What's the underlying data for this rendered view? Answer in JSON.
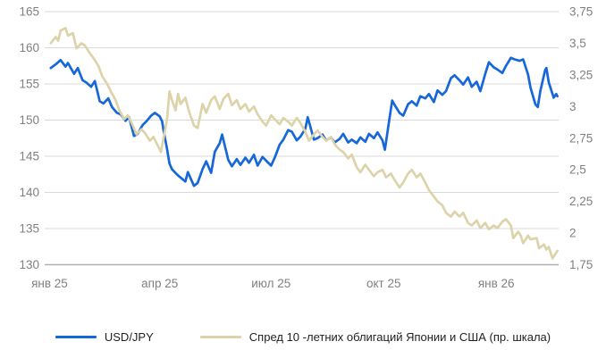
{
  "chart_data": {
    "type": "line",
    "title": "",
    "grid": true,
    "legend_position": "bottom-center",
    "background": "#ffffff",
    "gridline_color": "#d9d9d9",
    "baseline_color": "#b0b0b0",
    "axis_text_color": "#808080",
    "legend_text_color": "#1f1f1f",
    "left_axis": {
      "min": 130,
      "max": 165,
      "ticks": [
        165,
        160,
        155,
        150,
        145,
        140,
        135,
        130
      ]
    },
    "right_axis": {
      "min": 1.75,
      "max": 3.75,
      "ticks": [
        "3,75",
        "3,5",
        "3,25",
        "3",
        "2,75",
        "2,5",
        "2,25",
        "2",
        "1,75"
      ]
    },
    "x_axis": {
      "start_date": "2024-12-28",
      "end_date": "2026-02-21",
      "ticks": [
        {
          "label": "янв 25",
          "date": "2025-01-01"
        },
        {
          "label": "апр 25",
          "date": "2025-04-01"
        },
        {
          "label": "июл 25",
          "date": "2025-07-01"
        },
        {
          "label": "окт 25",
          "date": "2025-10-01"
        },
        {
          "label": "янв 26",
          "date": "2026-01-01"
        }
      ]
    },
    "series": [
      {
        "name": "USD/JPY",
        "color": "#1668d8",
        "axis": "left",
        "points": [
          [
            "2025-01-02",
            157.2
          ],
          [
            "2025-01-06",
            157.7
          ],
          [
            "2025-01-10",
            158.3
          ],
          [
            "2025-01-14",
            157.4
          ],
          [
            "2025-01-16",
            157.9
          ],
          [
            "2025-01-21",
            156.4
          ],
          [
            "2025-01-24",
            157.2
          ],
          [
            "2025-01-28",
            155.5
          ],
          [
            "2025-01-31",
            155.2
          ],
          [
            "2025-02-04",
            154.6
          ],
          [
            "2025-02-07",
            155.4
          ],
          [
            "2025-02-11",
            152.6
          ],
          [
            "2025-02-14",
            152.3
          ],
          [
            "2025-02-18",
            153.0
          ],
          [
            "2025-02-21",
            151.8
          ],
          [
            "2025-02-25",
            151.0
          ],
          [
            "2025-02-28",
            150.8
          ],
          [
            "2025-03-04",
            149.9
          ],
          [
            "2025-03-07",
            150.4
          ],
          [
            "2025-03-11",
            147.8
          ],
          [
            "2025-03-14",
            148.1
          ],
          [
            "2025-03-18",
            149.3
          ],
          [
            "2025-03-21",
            149.8
          ],
          [
            "2025-03-25",
            150.6
          ],
          [
            "2025-03-28",
            151.0
          ],
          [
            "2025-04-01",
            150.5
          ],
          [
            "2025-04-03",
            149.8
          ],
          [
            "2025-04-04",
            148.7
          ],
          [
            "2025-04-07",
            146.0
          ],
          [
            "2025-04-09",
            144.0
          ],
          [
            "2025-04-11",
            143.2
          ],
          [
            "2025-04-15",
            142.5
          ],
          [
            "2025-04-17",
            142.2
          ],
          [
            "2025-04-22",
            141.5
          ],
          [
            "2025-04-24",
            142.8
          ],
          [
            "2025-04-29",
            140.9
          ],
          [
            "2025-05-02",
            141.3
          ],
          [
            "2025-05-06",
            143.2
          ],
          [
            "2025-05-09",
            144.3
          ],
          [
            "2025-05-13",
            142.7
          ],
          [
            "2025-05-16",
            145.6
          ],
          [
            "2025-05-20",
            146.8
          ],
          [
            "2025-05-22",
            148.0
          ],
          [
            "2025-05-27",
            144.5
          ],
          [
            "2025-05-30",
            143.6
          ],
          [
            "2025-06-03",
            144.6
          ],
          [
            "2025-06-06",
            143.8
          ],
          [
            "2025-06-10",
            144.8
          ],
          [
            "2025-06-13",
            144.1
          ],
          [
            "2025-06-17",
            145.2
          ],
          [
            "2025-06-20",
            143.7
          ],
          [
            "2025-06-24",
            144.9
          ],
          [
            "2025-06-27",
            144.4
          ],
          [
            "2025-07-01",
            143.7
          ],
          [
            "2025-07-04",
            144.8
          ],
          [
            "2025-07-08",
            146.6
          ],
          [
            "2025-07-11",
            147.3
          ],
          [
            "2025-07-15",
            148.6
          ],
          [
            "2025-07-18",
            148.4
          ],
          [
            "2025-07-22",
            147.2
          ],
          [
            "2025-07-25",
            147.7
          ],
          [
            "2025-07-29",
            148.8
          ],
          [
            "2025-07-31",
            150.4
          ],
          [
            "2025-08-05",
            147.3
          ],
          [
            "2025-08-08",
            147.5
          ],
          [
            "2025-08-12",
            148.0
          ],
          [
            "2025-08-15",
            147.2
          ],
          [
            "2025-08-19",
            147.6
          ],
          [
            "2025-08-22",
            146.9
          ],
          [
            "2025-08-26",
            147.4
          ],
          [
            "2025-08-29",
            148.1
          ],
          [
            "2025-09-02",
            146.9
          ],
          [
            "2025-09-05",
            147.3
          ],
          [
            "2025-09-09",
            146.8
          ],
          [
            "2025-09-12",
            147.6
          ],
          [
            "2025-09-16",
            147.0
          ],
          [
            "2025-09-19",
            148.1
          ],
          [
            "2025-09-23",
            147.5
          ],
          [
            "2025-09-26",
            148.3
          ],
          [
            "2025-09-30",
            147.2
          ],
          [
            "2025-10-02",
            145.9
          ],
          [
            "2025-10-06",
            150.5
          ],
          [
            "2025-10-08",
            152.7
          ],
          [
            "2025-10-10",
            152.1
          ],
          [
            "2025-10-14",
            151.0
          ],
          [
            "2025-10-17",
            150.6
          ],
          [
            "2025-10-21",
            152.2
          ],
          [
            "2025-10-24",
            152.6
          ],
          [
            "2025-10-28",
            152.0
          ],
          [
            "2025-10-31",
            153.3
          ],
          [
            "2025-11-04",
            153.0
          ],
          [
            "2025-11-07",
            153.6
          ],
          [
            "2025-11-11",
            152.5
          ],
          [
            "2025-11-14",
            154.1
          ],
          [
            "2025-11-18",
            153.5
          ],
          [
            "2025-11-21",
            154.0
          ],
          [
            "2025-11-25",
            155.8
          ],
          [
            "2025-11-28",
            156.2
          ],
          [
            "2025-12-02",
            155.5
          ],
          [
            "2025-12-05",
            154.9
          ],
          [
            "2025-12-09",
            155.9
          ],
          [
            "2025-12-12",
            154.6
          ],
          [
            "2025-12-16",
            155.3
          ],
          [
            "2025-12-19",
            154.0
          ],
          [
            "2025-12-23",
            156.4
          ],
          [
            "2025-12-26",
            158.0
          ],
          [
            "2025-12-30",
            157.3
          ],
          [
            "2026-01-02",
            157.0
          ],
          [
            "2026-01-06",
            156.5
          ],
          [
            "2026-01-09",
            157.5
          ],
          [
            "2026-01-13",
            158.6
          ],
          [
            "2026-01-16",
            158.4
          ],
          [
            "2026-01-20",
            158.2
          ],
          [
            "2026-01-23",
            158.4
          ],
          [
            "2026-01-27",
            156.3
          ],
          [
            "2026-01-29",
            154.5
          ],
          [
            "2026-02-02",
            152.2
          ],
          [
            "2026-02-04",
            151.8
          ],
          [
            "2026-02-06",
            154.0
          ],
          [
            "2026-02-10",
            156.9
          ],
          [
            "2026-02-11",
            157.2
          ],
          [
            "2026-02-13",
            155.2
          ],
          [
            "2026-02-17",
            153.1
          ],
          [
            "2026-02-19",
            153.6
          ],
          [
            "2026-02-20",
            153.3
          ]
        ]
      },
      {
        "name": "Спред 10 -летних облигаций Японии и США (пр. шкала)",
        "color": "#ddd3aa",
        "axis": "right",
        "points": [
          [
            "2025-01-02",
            3.5
          ],
          [
            "2025-01-06",
            3.55
          ],
          [
            "2025-01-08",
            3.52
          ],
          [
            "2025-01-10",
            3.6
          ],
          [
            "2025-01-14",
            3.62
          ],
          [
            "2025-01-16",
            3.56
          ],
          [
            "2025-01-20",
            3.58
          ],
          [
            "2025-01-23",
            3.46
          ],
          [
            "2025-01-27",
            3.5
          ],
          [
            "2025-01-30",
            3.48
          ],
          [
            "2025-02-03",
            3.42
          ],
          [
            "2025-02-06",
            3.38
          ],
          [
            "2025-02-10",
            3.32
          ],
          [
            "2025-02-13",
            3.24
          ],
          [
            "2025-02-17",
            3.18
          ],
          [
            "2025-02-20",
            3.12
          ],
          [
            "2025-02-24",
            3.05
          ],
          [
            "2025-02-27",
            2.97
          ],
          [
            "2025-03-03",
            2.9
          ],
          [
            "2025-03-06",
            2.93
          ],
          [
            "2025-03-10",
            2.85
          ],
          [
            "2025-03-13",
            2.78
          ],
          [
            "2025-03-17",
            2.82
          ],
          [
            "2025-03-20",
            2.79
          ],
          [
            "2025-03-24",
            2.73
          ],
          [
            "2025-03-27",
            2.76
          ],
          [
            "2025-03-31",
            2.68
          ],
          [
            "2025-04-02",
            2.64
          ],
          [
            "2025-04-07",
            2.9
          ],
          [
            "2025-04-09",
            3.12
          ],
          [
            "2025-04-11",
            3.05
          ],
          [
            "2025-04-14",
            2.97
          ],
          [
            "2025-04-16",
            3.1
          ],
          [
            "2025-04-18",
            3.02
          ],
          [
            "2025-04-22",
            3.07
          ],
          [
            "2025-04-25",
            2.96
          ],
          [
            "2025-04-29",
            2.85
          ],
          [
            "2025-05-02",
            2.83
          ],
          [
            "2025-05-06",
            3.02
          ],
          [
            "2025-05-09",
            2.95
          ],
          [
            "2025-05-13",
            3.05
          ],
          [
            "2025-05-16",
            3.08
          ],
          [
            "2025-05-20",
            2.98
          ],
          [
            "2025-05-23",
            3.06
          ],
          [
            "2025-05-27",
            3.1
          ],
          [
            "2025-05-30",
            3.01
          ],
          [
            "2025-06-03",
            3.05
          ],
          [
            "2025-06-06",
            2.98
          ],
          [
            "2025-06-10",
            3.02
          ],
          [
            "2025-06-13",
            2.96
          ],
          [
            "2025-06-17",
            3.0
          ],
          [
            "2025-06-20",
            2.94
          ],
          [
            "2025-06-24",
            2.88
          ],
          [
            "2025-06-27",
            2.85
          ],
          [
            "2025-07-01",
            2.93
          ],
          [
            "2025-07-04",
            2.9
          ],
          [
            "2025-07-08",
            2.86
          ],
          [
            "2025-07-11",
            2.91
          ],
          [
            "2025-07-15",
            2.88
          ],
          [
            "2025-07-18",
            2.85
          ],
          [
            "2025-07-22",
            2.91
          ],
          [
            "2025-07-25",
            2.87
          ],
          [
            "2025-07-29",
            2.8
          ],
          [
            "2025-08-01",
            2.73
          ],
          [
            "2025-08-05",
            2.78
          ],
          [
            "2025-08-08",
            2.81
          ],
          [
            "2025-08-12",
            2.76
          ],
          [
            "2025-08-15",
            2.73
          ],
          [
            "2025-08-19",
            2.76
          ],
          [
            "2025-08-22",
            2.7
          ],
          [
            "2025-08-26",
            2.66
          ],
          [
            "2025-08-29",
            2.64
          ],
          [
            "2025-09-02",
            2.59
          ],
          [
            "2025-09-05",
            2.62
          ],
          [
            "2025-09-09",
            2.52
          ],
          [
            "2025-09-12",
            2.48
          ],
          [
            "2025-09-16",
            2.54
          ],
          [
            "2025-09-19",
            2.5
          ],
          [
            "2025-09-23",
            2.45
          ],
          [
            "2025-09-26",
            2.48
          ],
          [
            "2025-09-30",
            2.5
          ],
          [
            "2025-10-03",
            2.44
          ],
          [
            "2025-10-07",
            2.47
          ],
          [
            "2025-10-10",
            2.42
          ],
          [
            "2025-10-14",
            2.36
          ],
          [
            "2025-10-17",
            2.4
          ],
          [
            "2025-10-21",
            2.47
          ],
          [
            "2025-10-24",
            2.5
          ],
          [
            "2025-10-28",
            2.44
          ],
          [
            "2025-10-31",
            2.47
          ],
          [
            "2025-11-04",
            2.4
          ],
          [
            "2025-11-07",
            2.34
          ],
          [
            "2025-11-11",
            2.29
          ],
          [
            "2025-11-14",
            2.25
          ],
          [
            "2025-11-18",
            2.22
          ],
          [
            "2025-11-21",
            2.16
          ],
          [
            "2025-11-25",
            2.13
          ],
          [
            "2025-11-28",
            2.17
          ],
          [
            "2025-12-02",
            2.13
          ],
          [
            "2025-12-05",
            2.16
          ],
          [
            "2025-12-09",
            2.08
          ],
          [
            "2025-12-12",
            2.06
          ],
          [
            "2025-12-16",
            2.1
          ],
          [
            "2025-12-19",
            2.04
          ],
          [
            "2025-12-23",
            2.08
          ],
          [
            "2025-12-26",
            2.03
          ],
          [
            "2025-12-30",
            2.06
          ],
          [
            "2026-01-02",
            2.04
          ],
          [
            "2026-01-06",
            2.09
          ],
          [
            "2026-01-09",
            2.11
          ],
          [
            "2026-01-13",
            2.06
          ],
          [
            "2026-01-15",
            1.96
          ],
          [
            "2026-01-19",
            2.01
          ],
          [
            "2026-01-21",
            1.98
          ],
          [
            "2026-01-23",
            1.92
          ],
          [
            "2026-01-27",
            1.98
          ],
          [
            "2026-01-29",
            1.95
          ],
          [
            "2026-02-03",
            1.96
          ],
          [
            "2026-02-05",
            1.88
          ],
          [
            "2026-02-09",
            1.91
          ],
          [
            "2026-02-11",
            1.87
          ],
          [
            "2026-02-13",
            1.89
          ],
          [
            "2026-02-16",
            1.8
          ],
          [
            "2026-02-18",
            1.83
          ],
          [
            "2026-02-20",
            1.86
          ]
        ]
      }
    ]
  },
  "legend": {
    "usdjpy_label": "USD/JPY",
    "spread_label": "Спред 10 -летних облигаций Японии и США (пр. шкала)"
  }
}
